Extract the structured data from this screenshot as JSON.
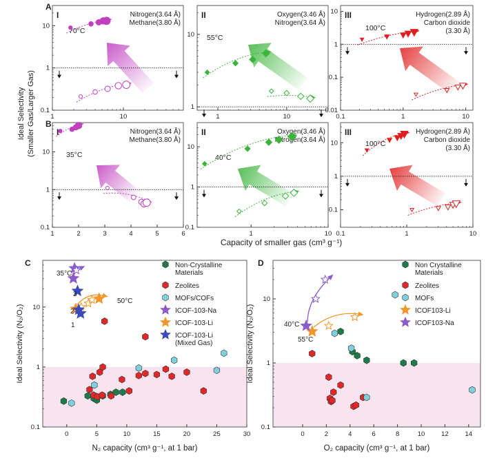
{
  "colors": {
    "purple": "#c040c0",
    "green": "#3cb43c",
    "red": "#e02020",
    "shade": "#f8e4ef",
    "non_crystalline": "#1e7a4a",
    "zeolites": "#e02828",
    "mofs": "#7fd0dc",
    "icof_na": "#8a5cc8",
    "icof_li": "#f0962a",
    "icof_mixed": "#3a4ab8"
  },
  "top_ylabel": [
    "Ideal Selectivity",
    "(Smaller Gas/Larger Gas)"
  ],
  "top_xlabel": "Capacity of smaller gas (cm³ g⁻¹)",
  "chart_data": [
    {
      "id": "A-I",
      "row": "A",
      "roman": "I",
      "type": "scatter",
      "xscale": "log",
      "yscale": "log",
      "xlim": [
        1,
        70
      ],
      "ylim": [
        0.1,
        30
      ],
      "xticks": [
        1,
        10
      ],
      "yticks": [
        0.1,
        1,
        10
      ],
      "legend": [
        "Nitrogen(3.64 Å)",
        "Methane(3.80 Å)"
      ],
      "temp": "70°C",
      "color": "purple",
      "filled": [
        [
          1.8,
          9
        ],
        [
          3.5,
          11
        ],
        [
          4.5,
          12
        ],
        [
          5.2,
          13
        ],
        [
          5.8,
          13
        ]
      ],
      "open": [
        [
          2.5,
          0.21
        ],
        [
          4,
          0.27
        ],
        [
          6,
          0.32
        ],
        [
          8.5,
          0.38
        ],
        [
          11,
          0.4
        ]
      ]
    },
    {
      "id": "A-II",
      "row": "A",
      "roman": "II",
      "type": "scatter",
      "xscale": "log",
      "yscale": "log",
      "xlim": [
        0.5,
        40
      ],
      "ylim": [
        0.9,
        25
      ],
      "xticks": [
        1,
        10
      ],
      "yticks": [
        1,
        10
      ],
      "legend": [
        "Oxygen(3.46 Å)",
        "Nitrogen(3.64 Å)"
      ],
      "temp": "55°C",
      "color": "green",
      "filled": [
        [
          0.7,
          3
        ],
        [
          1.8,
          4
        ],
        [
          3.2,
          4.5
        ],
        [
          5,
          5.5
        ]
      ],
      "open": [
        [
          6,
          1.65
        ],
        [
          10,
          1.55
        ],
        [
          16,
          1.4
        ],
        [
          22,
          1.3
        ]
      ]
    },
    {
      "id": "A-III",
      "row": "A",
      "roman": "III",
      "type": "scatter",
      "xscale": "log",
      "yscale": "log",
      "xlim": [
        0.1,
        13
      ],
      "ylim": [
        0.01,
        15
      ],
      "xticks": [
        0.1,
        1,
        10
      ],
      "yticks": [
        0.01,
        0.1,
        1,
        10
      ],
      "legend": [
        "Hydrogen(2.89 Å)",
        "Carbon dioxide",
        "(3.30 Å)"
      ],
      "temp": "100°C",
      "color": "red",
      "filled": [
        [
          0.22,
          1.4
        ],
        [
          0.55,
          1.7
        ],
        [
          1,
          1.9
        ],
        [
          1.2,
          2.1
        ],
        [
          1.5,
          2.3
        ]
      ],
      "open": [
        [
          1.6,
          0.03
        ],
        [
          5,
          0.04
        ],
        [
          7.5,
          0.05
        ],
        [
          9,
          0.055
        ]
      ]
    },
    {
      "id": "B-I",
      "row": "B",
      "roman": "I",
      "type": "scatter",
      "xscale": "linear",
      "yscale": "log",
      "xlim": [
        1,
        6
      ],
      "ylim": [
        0.1,
        60
      ],
      "xticks": [
        1,
        2,
        3,
        4,
        5,
        6
      ],
      "yticks": [
        0.1,
        1,
        10
      ],
      "legend": [
        "Nitrogen(3.64 Å)",
        "Methane(3.80 Å)"
      ],
      "temp": "35°C",
      "color": "purple",
      "filled": [
        [
          1.3,
          36
        ],
        [
          1.75,
          40
        ],
        [
          1.9,
          45
        ],
        [
          2,
          50
        ]
      ],
      "open": [
        [
          3.1,
          1.1
        ],
        [
          4.1,
          0.62
        ],
        [
          4.4,
          0.47
        ],
        [
          4.5,
          0.42
        ],
        [
          4.6,
          0.45
        ]
      ]
    },
    {
      "id": "B-II",
      "row": "B",
      "roman": "II",
      "type": "scatter",
      "xscale": "log",
      "yscale": "log",
      "xlim": [
        0.2,
        10
      ],
      "ylim": [
        0.1,
        40
      ],
      "xticks": [
        1,
        10
      ],
      "yticks": [
        0.1,
        1,
        10
      ],
      "legend": [
        "Oxygen(3.46 Å)",
        "Nitrogen(3.64 Å)"
      ],
      "temp": "40°C",
      "color": "green",
      "filled": [
        [
          0.25,
          3.8
        ],
        [
          0.9,
          9
        ],
        [
          1.7,
          13
        ],
        [
          2.3,
          15
        ],
        [
          3.4,
          18
        ]
      ],
      "open": [
        [
          0.7,
          0.25
        ],
        [
          1.5,
          0.4
        ],
        [
          2.8,
          0.6
        ],
        [
          3.6,
          0.72
        ]
      ]
    },
    {
      "id": "B-III",
      "row": "B",
      "roman": "III",
      "type": "scatter",
      "xscale": "log",
      "yscale": "log",
      "xlim": [
        0.1,
        10
      ],
      "ylim": [
        0.03,
        40
      ],
      "xticks": [
        0.1,
        1,
        10
      ],
      "yticks": [
        0.1,
        1,
        10
      ],
      "legend": [
        "Hydrogen(2.89 Å)",
        "Carbon dioxide",
        "(3.30 Å)"
      ],
      "temp": "100°C",
      "color": "red",
      "filled": [
        [
          0.25,
          6
        ],
        [
          0.55,
          12
        ],
        [
          0.72,
          14
        ],
        [
          0.82,
          16
        ],
        [
          0.92,
          18
        ]
      ],
      "open": [
        [
          1.2,
          0.1
        ],
        [
          3,
          0.11
        ],
        [
          4.2,
          0.12
        ],
        [
          5,
          0.14
        ],
        [
          5.6,
          0.15
        ]
      ]
    }
  ],
  "chart_data_C": {
    "type": "scatter",
    "label": "C",
    "xscale": "linear",
    "yscale": "log",
    "xlim": [
      -4,
      30
    ],
    "ylim": [
      0.1,
      60
    ],
    "xticks": [
      0,
      5,
      10,
      15,
      20,
      25,
      30
    ],
    "yticks": [
      0.1,
      1,
      10
    ],
    "xlabel": "N₂ capacity (cm³ g⁻¹, at 1 bar)",
    "ylabel": "Ideal Selectivity (N₂/O₂)",
    "series": [
      {
        "name": "Non-Crystalline Materials",
        "key": "non_crystalline",
        "shape": "hex",
        "points": [
          [
            -0.5,
            0.27
          ],
          [
            3.5,
            0.33
          ],
          [
            4.5,
            0.3
          ],
          [
            5,
            0.28
          ],
          [
            6,
            0.33
          ],
          [
            7.3,
            0.35
          ],
          [
            8.2,
            0.38
          ],
          [
            9.3,
            0.38
          ]
        ]
      },
      {
        "name": "Zeolites",
        "key": "zeolites",
        "shape": "hex",
        "points": [
          [
            3.8,
            0.42
          ],
          [
            4.3,
            0.7
          ],
          [
            4.5,
            0.34
          ],
          [
            5.1,
            0.32
          ],
          [
            5.5,
            0.82
          ],
          [
            5.9,
            0.34
          ],
          [
            6,
            1.0
          ],
          [
            6.3,
            5.8
          ],
          [
            7.4,
            0.33
          ],
          [
            9.2,
            0.62
          ],
          [
            10.4,
            0.4
          ],
          [
            12,
            0.72
          ],
          [
            13.1,
            0.78
          ],
          [
            13.1,
            3.2
          ],
          [
            15,
            0.75
          ],
          [
            16.5,
            0.92
          ],
          [
            17.5,
            0.7
          ],
          [
            20,
            0.82
          ],
          [
            22.8,
            0.4
          ]
        ]
      },
      {
        "name": "MOFs/COFs",
        "key": "mofs",
        "shape": "hex",
        "points": [
          [
            0.8,
            0.25
          ],
          [
            4.6,
            0.5
          ],
          [
            12,
            0.96
          ],
          [
            17.9,
            1.3
          ],
          [
            25,
            0.88
          ],
          [
            26.2,
            1.7
          ]
        ]
      },
      {
        "name": "ICOF-103-Na",
        "key": "icof_na",
        "shape": "star",
        "open": [
          2,
          2.8
        ],
        "points": [
          [
            1.1,
            30
          ],
          [
            1.3,
            44
          ],
          [
            1.6,
            41
          ]
        ]
      },
      {
        "name": "ICOF-103-Li",
        "key": "icof_li",
        "shape": "star",
        "open": [
          1,
          2,
          3
        ],
        "points": [
          [
            1.5,
            9.3
          ],
          [
            2.4,
            10
          ],
          [
            3.6,
            11.5
          ],
          [
            4.2,
            13.2
          ],
          [
            5.4,
            13.8
          ]
        ]
      },
      {
        "name": "ICOF-103-Li (Mixed Gas)",
        "key": "icof_mixed",
        "shape": "star",
        "points": [
          [
            1.8,
            18.5
          ],
          [
            2.0,
            9.0
          ],
          [
            2.3,
            7.8
          ]
        ]
      }
    ],
    "annotations": [
      {
        "text": "35°C"
      },
      {
        "text": "50°C"
      },
      {
        "text": "3"
      },
      {
        "text": "2"
      },
      {
        "text": "1"
      }
    ]
  },
  "chart_data_D": {
    "type": "scatter",
    "label": "D",
    "xscale": "linear",
    "yscale": "log",
    "xlim": [
      -2.5,
      15
    ],
    "ylim": [
      0.1,
      40
    ],
    "xticks": [
      0,
      2,
      4,
      6,
      8,
      10,
      12,
      14
    ],
    "yticks": [
      0.1,
      1,
      10
    ],
    "xlabel": "O₂ capacity (cm³ g⁻¹, at 1 bar)",
    "ylabel": "Ideal Selectivity (N₂/O₂)",
    "series": [
      {
        "name": "Non Crystalline Materials",
        "key": "non_crystalline",
        "shape": "hex",
        "points": [
          [
            3.2,
            3.1
          ],
          [
            4.2,
            1.5
          ],
          [
            4.6,
            1.3
          ],
          [
            5.4,
            1.1
          ],
          [
            8.5,
            1.0
          ],
          [
            9.4,
            1.0
          ]
        ]
      },
      {
        "name": "Zeolites",
        "key": "zeolites",
        "shape": "hex",
        "points": [
          [
            0.8,
            1.4
          ],
          [
            2.2,
            0.6
          ],
          [
            2.3,
            0.28
          ],
          [
            2.4,
            0.25
          ],
          [
            2.5,
            0.26
          ],
          [
            2.6,
            0.35
          ],
          [
            3.2,
            0.45
          ],
          [
            4.3,
            0.21
          ],
          [
            4.5,
            0.22
          ],
          [
            5.1,
            0.29
          ]
        ]
      },
      {
        "name": "MOFs",
        "key": "mofs",
        "shape": "hex",
        "points": [
          [
            2.7,
            2.9
          ],
          [
            4.1,
            1.7
          ],
          [
            7.8,
            11.6
          ],
          [
            5.4,
            0.29
          ],
          [
            14.3,
            0.38
          ]
        ]
      },
      {
        "name": "ICOF103-Li",
        "key": "icof_li",
        "shape": "star",
        "open": [
          1,
          2
        ],
        "points": [
          [
            0.8,
            3.1
          ],
          [
            2.2,
            3.8
          ],
          [
            4.4,
            5.2
          ]
        ]
      },
      {
        "name": "ICOF103-Na",
        "key": "icof_na",
        "shape": "star",
        "open": [
          1,
          2
        ],
        "points": [
          [
            0.3,
            3.8
          ],
          [
            1.1,
            10
          ],
          [
            1.9,
            20
          ]
        ]
      }
    ],
    "annotations": [
      {
        "text": "40°C"
      },
      {
        "text": "55°C"
      }
    ]
  }
}
